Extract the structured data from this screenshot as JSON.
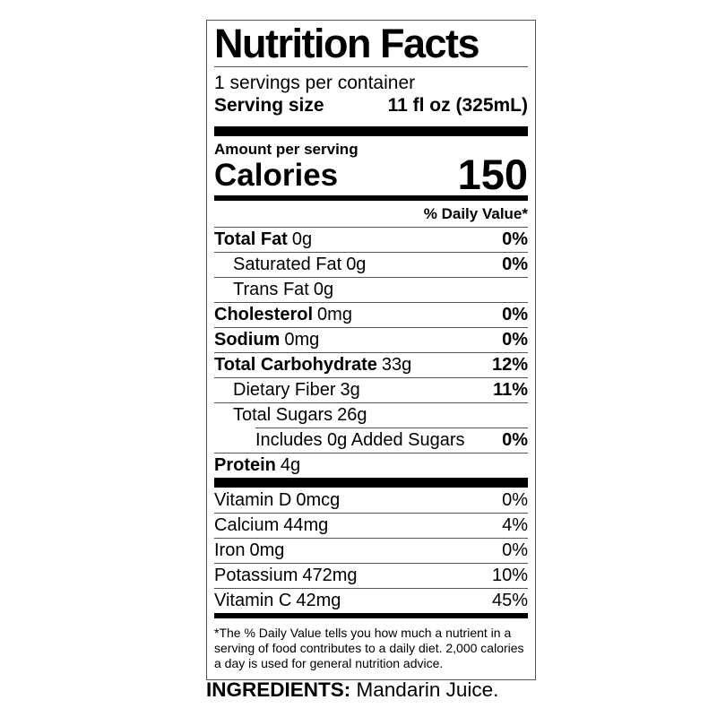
{
  "label": {
    "title": "Nutrition Facts",
    "servings_per_container": "1 servings per container",
    "serving_size_label": "Serving size",
    "serving_size_value": "11 fl oz (325mL)",
    "amount_per_serving": "Amount per serving",
    "calories_label": "Calories",
    "calories_value": "150",
    "daily_value_header": "% Daily Value*",
    "nutrients": [
      {
        "name": "Total Fat",
        "amount": "0g",
        "dv": "0%",
        "bold": true,
        "indent": 0
      },
      {
        "name": "Saturated Fat",
        "amount": "0g",
        "dv": "0%",
        "bold": false,
        "indent": 1
      },
      {
        "name": "Trans Fat",
        "amount": "0g",
        "dv": "",
        "bold": false,
        "indent": 1
      },
      {
        "name": "Cholesterol",
        "amount": "0mg",
        "dv": "0%",
        "bold": true,
        "indent": 0
      },
      {
        "name": "Sodium",
        "amount": "0mg",
        "dv": "0%",
        "bold": true,
        "indent": 0
      },
      {
        "name": "Total Carbohydrate",
        "amount": "33g",
        "dv": "12%",
        "bold": true,
        "indent": 0
      },
      {
        "name": "Dietary Fiber",
        "amount": "3g",
        "dv": "11%",
        "bold": false,
        "indent": 1
      },
      {
        "name": "Total Sugars",
        "amount": "26g",
        "dv": "",
        "bold": false,
        "indent": 1
      },
      {
        "name": "Includes 0g Added Sugars",
        "amount": "",
        "dv": "0%",
        "bold": false,
        "indent": 2
      },
      {
        "name": "Protein",
        "amount": "4g",
        "dv": "",
        "bold": true,
        "indent": 0
      }
    ],
    "vitamins": [
      {
        "name": "Vitamin D",
        "amount": "0mcg",
        "dv": "0%",
        "bold": false,
        "indent": 0
      },
      {
        "name": "Calcium",
        "amount": "44mg",
        "dv": "4%",
        "bold": false,
        "indent": 0
      },
      {
        "name": "Iron",
        "amount": "0mg",
        "dv": "0%",
        "bold": false,
        "indent": 0
      },
      {
        "name": "Potassium",
        "amount": "472mg",
        "dv": "10%",
        "bold": false,
        "indent": 0
      },
      {
        "name": "Vitamin C",
        "amount": "42mg",
        "dv": "45%",
        "bold": false,
        "indent": 0
      }
    ],
    "footnote": "*The % Daily Value tells you how much a nutrient in a serving of food contributes to a daily diet. 2,000 calories a day is used for general nutrition advice."
  },
  "ingredients": {
    "label": "INGREDIENTS:",
    "value": "Mandarin Juice."
  }
}
